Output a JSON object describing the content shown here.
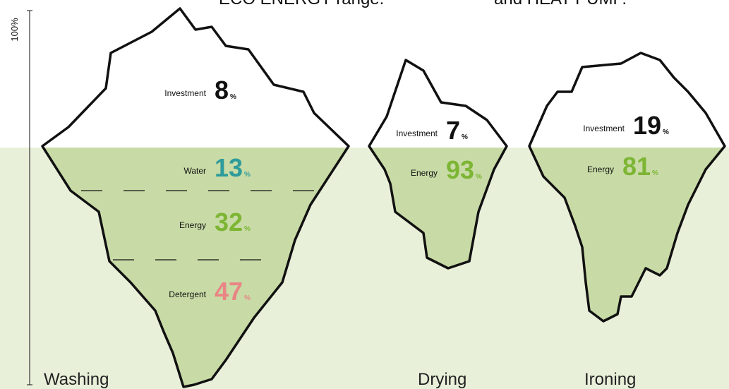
{
  "header": [
    "ECO ENERGY range.",
    "and HEAT PUMP."
  ],
  "axis_label": "100%",
  "unit": "%",
  "icebergs": [
    {
      "name": "Washing",
      "segments": [
        {
          "label": "Investment",
          "value": 8,
          "color": "#111111"
        },
        {
          "label": "Water",
          "value": 13,
          "color": "#2f9b9b"
        },
        {
          "label": "Energy",
          "value": 32,
          "color": "#7db534"
        },
        {
          "label": "Detergent",
          "value": 47,
          "color": "#e98585"
        }
      ]
    },
    {
      "name": "Drying",
      "segments": [
        {
          "label": "Investment",
          "value": 7,
          "color": "#111111"
        },
        {
          "label": "Energy",
          "value": 93,
          "color": "#7db534"
        }
      ]
    },
    {
      "name": "Ironing",
      "segments": [
        {
          "label": "Investment",
          "value": 19,
          "color": "#111111"
        },
        {
          "label": "Energy",
          "value": 81,
          "color": "#7db534"
        }
      ]
    }
  ]
}
